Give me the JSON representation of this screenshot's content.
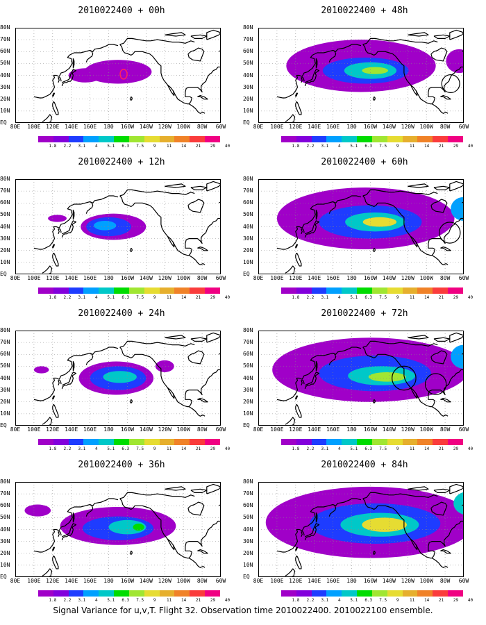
{
  "caption": "Signal Variance for u,v,T. Flight 32. Observation time 2010022400. 2010022100 ensemble.",
  "lat_labels": [
    "80N",
    "70N",
    "60N",
    "50N",
    "40N",
    "30N",
    "20N",
    "10N",
    "EQ"
  ],
  "lon_labels": [
    "80E",
    "100E",
    "120E",
    "140E",
    "160E",
    "180",
    "160W",
    "140W",
    "120W",
    "100W",
    "80W",
    "60W"
  ],
  "colorbar": {
    "labels": [
      "1.8",
      "2.2",
      "3.1",
      "4",
      "5.1",
      "6.3",
      "7.5",
      "9",
      "11",
      "14",
      "21",
      "29",
      "40"
    ],
    "colors": [
      "#a000c8",
      "#8200dc",
      "#1e3cff",
      "#00a0ff",
      "#00c8c8",
      "#00dc00",
      "#a0e632",
      "#e6dc32",
      "#e6af2d",
      "#f08228",
      "#fa3c3c",
      "#f00082"
    ]
  },
  "panels": [
    {
      "id": "p00",
      "title": "2010022400 + 00h",
      "lead_hours": 0,
      "blobs": [
        {
          "lon": 190,
          "lat": 43,
          "rlon": 36,
          "rlat": 10,
          "level": 0
        },
        {
          "lon": 155,
          "lat": 40,
          "rlon": 18,
          "rlat": 6,
          "level": 0
        }
      ],
      "circles": [],
      "outlines": [
        {
          "lon": 196,
          "lat": 41,
          "color": "#ff2060"
        }
      ]
    },
    {
      "id": "p12",
      "title": "2010022400 + 12h",
      "lead_hours": 12,
      "blobs": [
        {
          "lon": 185,
          "lat": 40,
          "rlon": 35,
          "rlat": 11,
          "level": 0
        },
        {
          "lon": 180,
          "lat": 40,
          "rlon": 24,
          "rlat": 8,
          "level": 2
        },
        {
          "lon": 176,
          "lat": 41,
          "rlon": 12,
          "rlat": 4,
          "level": 3
        },
        {
          "lon": 125,
          "lat": 47,
          "rlon": 10,
          "rlat": 3,
          "level": 0
        }
      ],
      "circles": [],
      "outlines": []
    },
    {
      "id": "p24",
      "title": "2010022400 + 24h",
      "lead_hours": 24,
      "blobs": [
        {
          "lon": 188,
          "lat": 40,
          "rlon": 40,
          "rlat": 14,
          "level": 0
        },
        {
          "lon": 190,
          "lat": 40,
          "rlon": 30,
          "rlat": 10,
          "level": 2
        },
        {
          "lon": 192,
          "lat": 41,
          "rlon": 18,
          "rlat": 5,
          "level": 4
        },
        {
          "lon": 108,
          "lat": 47,
          "rlon": 8,
          "rlat": 3,
          "level": 0
        },
        {
          "lon": 240,
          "lat": 50,
          "rlon": 10,
          "rlat": 5,
          "level": 0
        }
      ],
      "circles": [],
      "outlines": []
    },
    {
      "id": "p36",
      "title": "2010022400 + 36h",
      "lead_hours": 36,
      "blobs": [
        {
          "lon": 190,
          "lat": 43,
          "rlon": 62,
          "rlat": 16,
          "level": 0
        },
        {
          "lon": 190,
          "lat": 41,
          "rlon": 38,
          "rlat": 10,
          "level": 2
        },
        {
          "lon": 200,
          "lat": 42,
          "rlon": 20,
          "rlat": 6,
          "level": 4
        },
        {
          "lon": 212,
          "lat": 42,
          "rlon": 6,
          "rlat": 3,
          "level": 5
        },
        {
          "lon": 104,
          "lat": 56,
          "rlon": 14,
          "rlat": 5,
          "level": 0
        }
      ],
      "circles": [],
      "outlines": []
    },
    {
      "id": "p48",
      "title": "2010022400 + 48h",
      "lead_hours": 48,
      "blobs": [
        {
          "lon": 190,
          "lat": 48,
          "rlon": 80,
          "rlat": 22,
          "level": 0
        },
        {
          "lon": 195,
          "lat": 44,
          "rlon": 46,
          "rlat": 11,
          "level": 2
        },
        {
          "lon": 200,
          "lat": 44,
          "rlon": 28,
          "rlat": 7,
          "level": 4
        },
        {
          "lon": 205,
          "lat": 44,
          "rlon": 14,
          "rlat": 3,
          "level": 6
        },
        {
          "lon": 295,
          "lat": 52,
          "rlon": 14,
          "rlat": 10,
          "level": 0
        }
      ],
      "circles": [
        {
          "lon": 286,
          "lat": 33,
          "r": 6
        }
      ],
      "outlines": []
    },
    {
      "id": "p60",
      "title": "2010022400 + 60h",
      "lead_hours": 60,
      "blobs": [
        {
          "lon": 195,
          "lat": 47,
          "rlon": 95,
          "rlat": 26,
          "level": 0
        },
        {
          "lon": 200,
          "lat": 44,
          "rlon": 55,
          "rlat": 14,
          "level": 2
        },
        {
          "lon": 205,
          "lat": 44,
          "rlon": 32,
          "rlat": 8,
          "level": 4
        },
        {
          "lon": 210,
          "lat": 44,
          "rlon": 18,
          "rlat": 4,
          "level": 7
        },
        {
          "lon": 300,
          "lat": 55,
          "rlon": 14,
          "rlat": 10,
          "level": 3
        }
      ],
      "circles": [
        {
          "lon": 285,
          "lat": 35,
          "r": 7
        }
      ],
      "outlines": []
    },
    {
      "id": "p72",
      "title": "2010022400 + 72h",
      "lead_hours": 72,
      "blobs": [
        {
          "lon": 200,
          "lat": 47,
          "rlon": 105,
          "rlat": 27,
          "level": 0
        },
        {
          "lon": 205,
          "lat": 44,
          "rlon": 60,
          "rlat": 15,
          "level": 2
        },
        {
          "lon": 212,
          "lat": 42,
          "rlon": 36,
          "rlat": 8,
          "level": 4
        },
        {
          "lon": 218,
          "lat": 41,
          "rlon": 20,
          "rlat": 4,
          "level": 6
        },
        {
          "lon": 300,
          "lat": 58,
          "rlon": 14,
          "rlat": 10,
          "level": 3
        }
      ],
      "circles": [
        {
          "lon": 236,
          "lat": 40,
          "r": 8
        },
        {
          "lon": 270,
          "lat": 35,
          "r": 7
        }
      ],
      "outlines": []
    },
    {
      "id": "p84",
      "title": "2010022400 + 84h",
      "lead_hours": 84,
      "blobs": [
        {
          "lon": 200,
          "lat": 46,
          "rlon": 112,
          "rlat": 30,
          "level": 0
        },
        {
          "lon": 205,
          "lat": 45,
          "rlon": 70,
          "rlat": 17,
          "level": 2
        },
        {
          "lon": 210,
          "lat": 44,
          "rlon": 42,
          "rlat": 10,
          "level": 4
        },
        {
          "lon": 215,
          "lat": 44,
          "rlon": 24,
          "rlat": 6,
          "level": 7
        },
        {
          "lon": 305,
          "lat": 62,
          "rlon": 16,
          "rlat": 10,
          "level": 4
        }
      ],
      "circles": [],
      "outlines": []
    }
  ]
}
